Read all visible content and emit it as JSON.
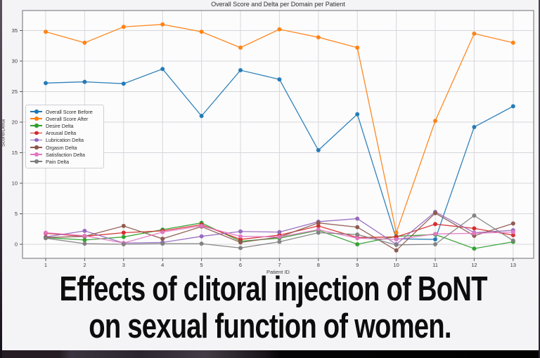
{
  "caption": {
    "line1": "Effects of clitoral injection of BoNT",
    "line2": "on sexual function of women."
  },
  "chart_data": {
    "type": "line",
    "title": "Overall Score and Delta per Domain per Patient",
    "xlabel": "Patient ID",
    "ylabel": "Score/Delta",
    "x": [
      1,
      2,
      3,
      4,
      5,
      6,
      7,
      8,
      9,
      10,
      11,
      12,
      13
    ],
    "yticks": [
      0,
      5,
      10,
      15,
      20,
      25,
      30,
      35
    ],
    "ylim": [
      -2.3,
      38.3
    ],
    "grid": true,
    "legend_position": "center-left",
    "background_color": "#f4f3f6",
    "plot_background_color": "#fcfcfd",
    "gridline_color": "#d7d7db",
    "series": [
      {
        "name": "Overall Score Before",
        "color": "#1f77b4",
        "values": [
          26.4,
          26.6,
          26.3,
          28.7,
          21.0,
          28.5,
          27.0,
          15.4,
          21.3,
          0.9,
          0.8,
          19.2,
          22.6
        ]
      },
      {
        "name": "Overall Score After",
        "color": "#ff7f0e",
        "values": [
          34.8,
          33.0,
          35.6,
          36.0,
          34.8,
          32.2,
          35.2,
          33.9,
          32.2,
          1.9,
          20.2,
          34.5,
          33.0
        ]
      },
      {
        "name": "Desire Delta",
        "color": "#2ca02c",
        "values": [
          1.1,
          0.7,
          1.2,
          2.4,
          3.5,
          0.5,
          1.0,
          2.3,
          0.0,
          1.3,
          1.6,
          -0.7,
          0.4
        ]
      },
      {
        "name": "Arousal Delta",
        "color": "#d62728",
        "values": [
          1.8,
          1.3,
          1.9,
          2.2,
          3.2,
          0.8,
          1.5,
          3.0,
          1.1,
          1.2,
          3.3,
          2.6,
          1.5
        ]
      },
      {
        "name": "Lubrication Delta",
        "color": "#9467bd",
        "values": [
          1.2,
          2.2,
          0.2,
          0.3,
          1.3,
          2.1,
          2.0,
          3.7,
          4.2,
          0.0,
          5.3,
          1.9,
          2.3
        ]
      },
      {
        "name": "Orgasm Delta",
        "color": "#8c564b",
        "values": [
          1.1,
          1.3,
          3.0,
          0.9,
          2.9,
          0.3,
          1.2,
          3.5,
          2.8,
          -1.0,
          5.1,
          1.4,
          3.4
        ]
      },
      {
        "name": "Satisfaction Delta",
        "color": "#e377c2",
        "values": [
          1.9,
          1.4,
          0.2,
          2.0,
          3.0,
          1.3,
          1.2,
          2.4,
          1.0,
          0.8,
          1.7,
          1.8,
          2.0
        ]
      },
      {
        "name": "Pain Delta",
        "color": "#7f7f7f",
        "values": [
          1.0,
          0.1,
          0.0,
          0.1,
          0.1,
          -0.6,
          0.4,
          1.9,
          1.6,
          -0.1,
          0.0,
          4.7,
          0.6
        ]
      }
    ]
  }
}
